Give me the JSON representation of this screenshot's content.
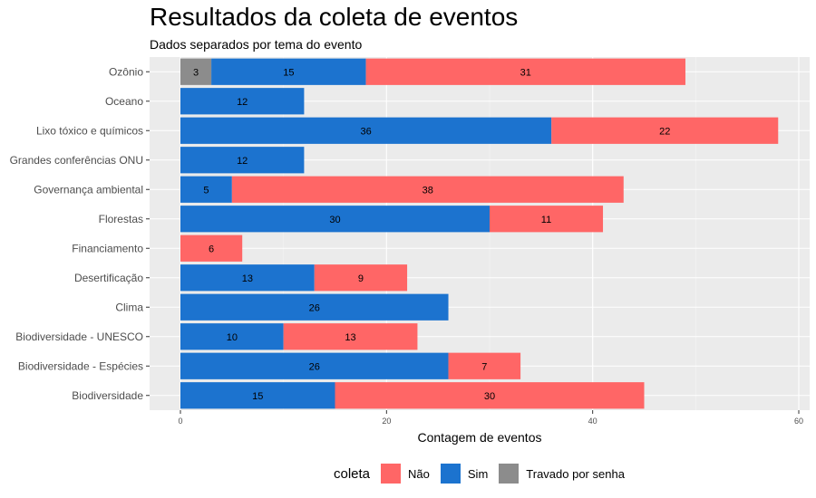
{
  "chart_data": {
    "type": "bar",
    "orientation": "horizontal",
    "stacked": true,
    "title": "Resultados da coleta de eventos",
    "subtitle": "Dados separados por tema do evento",
    "xlabel": "Contagem de eventos",
    "ylabel": "",
    "xlim": [
      0,
      60
    ],
    "xticks": [
      0,
      20,
      40,
      60
    ],
    "grid": true,
    "legend_position": "bottom",
    "legend_title": "coleta",
    "categories": [
      "Ozônio",
      "Oceano",
      "Lixo tóxico e químicos",
      "Grandes conferências ONU",
      "Governança ambiental",
      "Florestas",
      "Financiamento",
      "Desertificação",
      "Clima",
      "Biodiversidade - UNESCO",
      "Biodiversidade - Espécies",
      "Biodiversidade"
    ],
    "series": [
      {
        "name": "Travado por senha",
        "color": "#8c8c8c",
        "values": [
          3,
          0,
          0,
          0,
          0,
          0,
          0,
          0,
          0,
          0,
          0,
          0
        ]
      },
      {
        "name": "Sim",
        "color": "#1c73cf",
        "values": [
          15,
          12,
          36,
          12,
          5,
          30,
          0,
          13,
          26,
          10,
          26,
          15
        ]
      },
      {
        "name": "Não",
        "color": "#ff6666",
        "values": [
          31,
          0,
          22,
          0,
          38,
          11,
          6,
          9,
          0,
          13,
          7,
          30
        ]
      }
    ],
    "legend_order": [
      "Não",
      "Sim",
      "Travado por senha"
    ]
  }
}
